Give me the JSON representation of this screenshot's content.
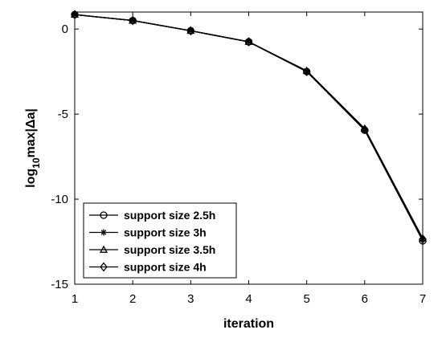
{
  "chart_data": {
    "type": "line",
    "xlabel": "iteration",
    "ylabel": {
      "prefix": "log",
      "subscript": "10",
      "suffix": "max|Δa|"
    },
    "xlim": [
      1,
      7
    ],
    "ylim": [
      -15,
      1
    ],
    "xticks": [
      "1",
      "2",
      "3",
      "4",
      "5",
      "6",
      "7"
    ],
    "yticks": [
      "0",
      "-5",
      "-10",
      "-15"
    ],
    "x": [
      1,
      2,
      3,
      4,
      5,
      6,
      7
    ],
    "series": [
      {
        "name": "support size 2.5h",
        "marker": "circle",
        "values": [
          0.85,
          0.5,
          -0.1,
          -0.75,
          -2.5,
          -5.95,
          -12.45
        ]
      },
      {
        "name": "support size 3h",
        "marker": "asterisk",
        "values": [
          0.85,
          0.5,
          -0.1,
          -0.75,
          -2.5,
          -5.9,
          -12.35
        ]
      },
      {
        "name": "support size 3.5h",
        "marker": "triangle",
        "values": [
          0.85,
          0.5,
          -0.1,
          -0.75,
          -2.45,
          -5.85,
          -12.3
        ]
      },
      {
        "name": "support size 4h",
        "marker": "diamond",
        "values": [
          0.85,
          0.5,
          -0.1,
          -0.75,
          -2.5,
          -5.9,
          -12.35
        ]
      }
    ],
    "grid": false,
    "legend_position": "bottom-left",
    "colors": {
      "line": "#000000",
      "background": "#ffffff"
    }
  }
}
